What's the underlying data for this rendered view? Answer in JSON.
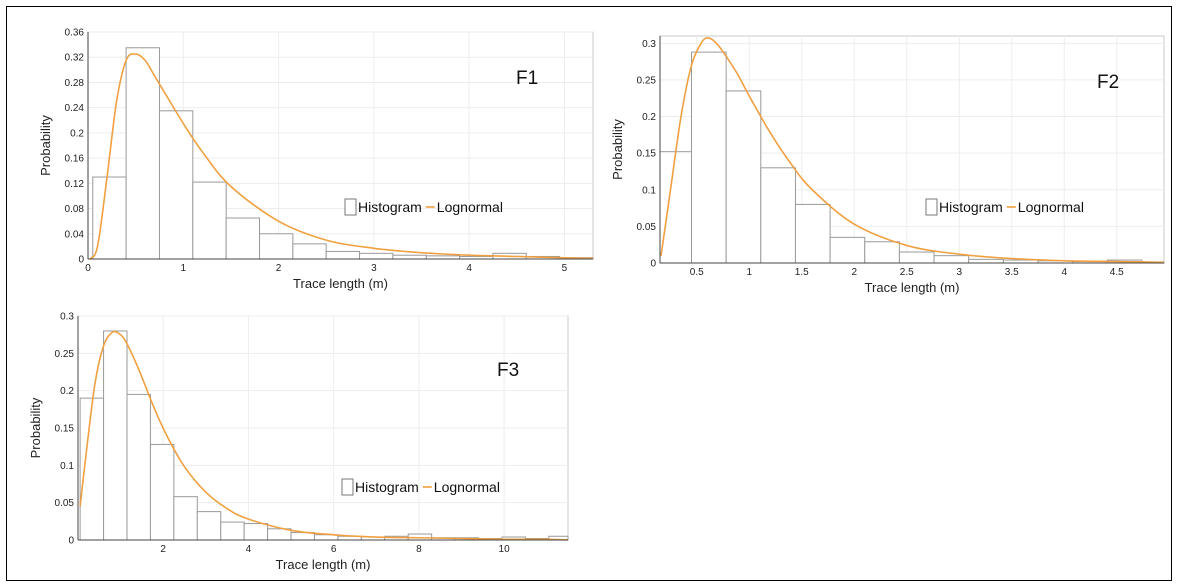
{
  "colors": {
    "histogram_edge": "#9a9a9a",
    "lognormal": "#f0a040",
    "grid": "#ededed"
  },
  "chart_data": [
    {
      "type": "bar",
      "label": "F1",
      "xlabel": "Trace length (m)",
      "ylabel": "Probability",
      "xlim": [
        0,
        5.3
      ],
      "ylim": [
        0,
        0.36
      ],
      "xticks": [
        0,
        1,
        2,
        3,
        4,
        5
      ],
      "yticks": [
        0,
        0.04,
        0.08,
        0.12,
        0.16,
        0.2,
        0.24,
        0.28,
        0.32,
        0.36
      ],
      "bin_edges": [
        0.05,
        0.4,
        0.75,
        1.1,
        1.45,
        1.8,
        2.15,
        2.5,
        2.85,
        3.2,
        3.55,
        3.9,
        4.25,
        4.6,
        4.95,
        5.3
      ],
      "histogram": [
        0.13,
        0.335,
        0.235,
        0.122,
        0.065,
        0.04,
        0.024,
        0.012,
        0.009,
        0.006,
        0.005,
        0.004,
        0.009,
        0.004,
        0.002
      ],
      "lognormal": {
        "x": [
          0.02,
          0.1,
          0.2,
          0.3,
          0.4,
          0.5,
          0.6,
          0.7,
          0.8,
          1.0,
          1.2,
          1.5,
          2.0,
          2.5,
          3.0,
          3.5,
          4.0,
          4.5,
          5.0,
          5.3
        ],
        "y": [
          0.0,
          0.02,
          0.13,
          0.25,
          0.315,
          0.325,
          0.315,
          0.29,
          0.265,
          0.215,
          0.17,
          0.115,
          0.06,
          0.03,
          0.017,
          0.01,
          0.006,
          0.004,
          0.002,
          0.001
        ]
      },
      "legend": [
        "Histogram",
        "Lognormal"
      ],
      "legend_position": "lower-right"
    },
    {
      "type": "bar",
      "label": "F2",
      "xlabel": "Trace length (m)",
      "ylabel": "Probability",
      "xlim": [
        0.15,
        4.95
      ],
      "ylim": [
        0,
        0.31
      ],
      "xticks": [
        0.5,
        1,
        1.5,
        2,
        2.5,
        3,
        3.5,
        4,
        4.5
      ],
      "xtick_labels": [
        "0.5",
        "1",
        "1.5",
        "2",
        "2.5",
        "3",
        "3.5",
        "4",
        "4.5"
      ],
      "yticks": [
        0,
        0.05,
        0.1,
        0.15,
        0.2,
        0.25,
        0.3
      ],
      "bin_edges": [
        0.15,
        0.45,
        0.78,
        1.11,
        1.44,
        1.77,
        2.1,
        2.43,
        2.76,
        3.09,
        3.42,
        3.75,
        4.08,
        4.41,
        4.74,
        4.95
      ],
      "histogram": [
        0.152,
        0.288,
        0.235,
        0.13,
        0.08,
        0.035,
        0.029,
        0.015,
        0.01,
        0.005,
        0.004,
        0.003,
        0.002,
        0.004,
        0.001
      ],
      "lognormal": {
        "x": [
          0.16,
          0.25,
          0.35,
          0.45,
          0.55,
          0.62,
          0.7,
          0.8,
          0.9,
          1.0,
          1.2,
          1.4,
          1.6,
          2.0,
          2.5,
          3.0,
          3.5,
          4.0,
          4.5,
          4.95
        ],
        "y": [
          0.01,
          0.1,
          0.2,
          0.27,
          0.302,
          0.307,
          0.298,
          0.278,
          0.255,
          0.228,
          0.178,
          0.135,
          0.1,
          0.053,
          0.024,
          0.012,
          0.006,
          0.003,
          0.002,
          0.001
        ]
      },
      "legend": [
        "Histogram",
        "Lognormal"
      ],
      "legend_position": "lower-right"
    },
    {
      "type": "bar",
      "label": "F3",
      "xlabel": "Trace length (m)",
      "ylabel": "Probability",
      "xlim": [
        0,
        11.5
      ],
      "ylim": [
        0,
        0.3
      ],
      "xticks": [
        2,
        4,
        6,
        8,
        10
      ],
      "yticks": [
        0,
        0.05,
        0.1,
        0.15,
        0.2,
        0.25,
        0.3
      ],
      "bin_edges": [
        0.05,
        0.6,
        1.15,
        1.7,
        2.25,
        2.8,
        3.35,
        3.9,
        4.45,
        5.0,
        5.55,
        6.1,
        6.65,
        7.2,
        7.75,
        8.3,
        8.85,
        9.4,
        9.95,
        10.5,
        11.05,
        11.5
      ],
      "histogram": [
        0.19,
        0.28,
        0.195,
        0.128,
        0.058,
        0.038,
        0.024,
        0.022,
        0.015,
        0.01,
        0.007,
        0.005,
        0.004,
        0.005,
        0.008,
        0.003,
        0.003,
        0.002,
        0.004,
        0.002,
        0.005
      ],
      "lognormal": {
        "x": [
          0.05,
          0.2,
          0.4,
          0.6,
          0.8,
          0.95,
          1.1,
          1.3,
          1.5,
          1.8,
          2.1,
          2.5,
          3.0,
          3.5,
          4.0,
          5.0,
          6.0,
          7.0,
          8.0,
          9.0,
          10.0,
          11.0,
          11.5
        ],
        "y": [
          0.045,
          0.12,
          0.21,
          0.26,
          0.278,
          0.277,
          0.268,
          0.245,
          0.218,
          0.175,
          0.138,
          0.098,
          0.064,
          0.042,
          0.028,
          0.013,
          0.007,
          0.004,
          0.003,
          0.002,
          0.001,
          0.001,
          0.0
        ]
      },
      "legend": [
        "Histogram",
        "Lognormal"
      ],
      "legend_position": "lower-right"
    }
  ]
}
